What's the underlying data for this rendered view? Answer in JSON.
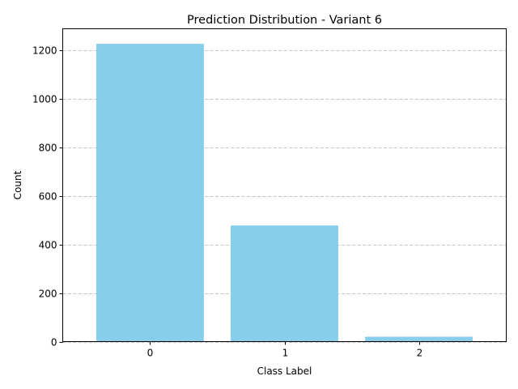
{
  "chart_data": {
    "type": "bar",
    "title": "Prediction Distribution - Variant 6",
    "xlabel": "Class Label",
    "ylabel": "Count",
    "categories": [
      "0",
      "1",
      "2"
    ],
    "values": [
      1228,
      479,
      20
    ],
    "ylim": [
      0,
      1290
    ],
    "yticks": [
      0,
      200,
      400,
      600,
      800,
      1000,
      1200
    ],
    "bar_color": "#87ceeb",
    "grid": "y-dashed"
  }
}
